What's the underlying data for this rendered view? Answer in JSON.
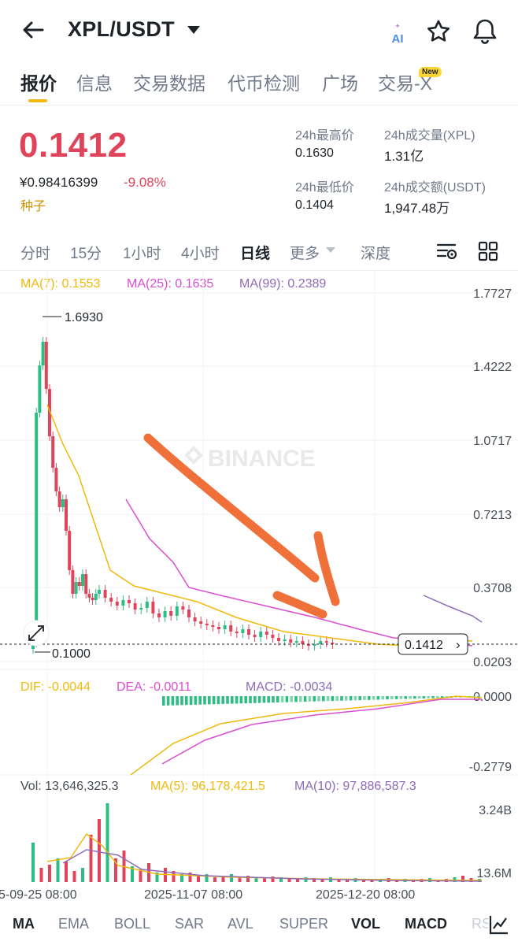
{
  "header": {
    "pair": "XPL/USDT",
    "icons": [
      "back-arrow-icon",
      "caret-down-icon",
      "ai-icon",
      "star-icon",
      "bell-icon"
    ]
  },
  "tabs": [
    {
      "label": "报价",
      "active": true
    },
    {
      "label": "信息"
    },
    {
      "label": "交易数据"
    },
    {
      "label": "代币检测"
    },
    {
      "label": "广场"
    },
    {
      "label": "交易-X",
      "badge": "New"
    }
  ],
  "ticker": {
    "price": "0.1412",
    "cny": "¥0.98416399",
    "change": "-9.08%",
    "tag": "种子",
    "high_label": "24h最高价",
    "high": "0.1630",
    "low_label": "24h最低价",
    "low": "0.1404",
    "vol_label": "24h成交量(XPL)",
    "vol": "1.31亿",
    "amt_label": "24h成交额(USDT)",
    "amt": "1,947.48万"
  },
  "intervals": [
    "分时",
    "15分",
    "1小时",
    "4小时",
    "日线",
    "更多",
    "深度"
  ],
  "active_interval": "日线",
  "ma_legend": {
    "ma7": "MA(7): 0.1553",
    "ma25": "MA(25): 0.1635",
    "ma99": "MA(99): 0.2389"
  },
  "price_axis": [
    "1.7727",
    "1.4222",
    "1.0717",
    "0.7213",
    "0.3708",
    "0.0203"
  ],
  "annotations": {
    "high": "1.6930",
    "low": "0.1000",
    "current": "0.1412",
    "watermark": "BINANCE"
  },
  "macd_legend": {
    "dif": "DIF: -0.0044",
    "dea": "DEA: -0.0011",
    "macd": "MACD: -0.0034"
  },
  "macd_axis": [
    "0.0000",
    "-0.2779"
  ],
  "vol_legend": {
    "vol": "Vol: 13,646,325.3",
    "ma5": "MA(5): 96,178,421.5",
    "ma10": "MA(10): 97,886,587.3"
  },
  "vol_axis": [
    "3.24B",
    "13.6M"
  ],
  "time_axis": [
    "5-09-25 08:00",
    "2025-11-07 08:00",
    "2025-12-20 08:00"
  ],
  "indicators": [
    "MA",
    "EMA",
    "BOLL",
    "SAR",
    "AVL",
    "SUPER",
    "VOL",
    "MACD",
    "RS"
  ],
  "colors": {
    "up": "#2ebd85",
    "down": "#e0445b",
    "ma7": "#f0b90b",
    "ma25": "#d94fd1",
    "ma99": "#8e6bb8",
    "accent": "#f0b90b",
    "drawing": "#f0703a"
  }
}
